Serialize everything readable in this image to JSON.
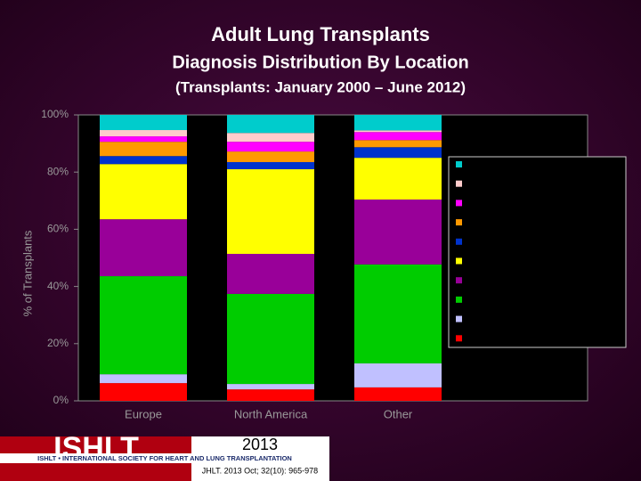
{
  "chart_data": {
    "type": "stacked-bar",
    "title": "Adult Lung Transplants",
    "subtitle": "Diagnosis Distribution By Location",
    "subtitle2": "(Transplants: January 2000 – June 2012)",
    "y_label": "% of Transplants",
    "categories": [
      "Europe",
      "North America",
      "Other"
    ],
    "series": [
      {
        "color": "#ff0000",
        "values": [
          6.2,
          4.0,
          4.7
        ]
      },
      {
        "color": "#c0c0ff",
        "values": [
          3.1,
          1.9,
          8.4
        ]
      },
      {
        "color": "#00cc00",
        "values": [
          34.3,
          31.5,
          34.6
        ]
      },
      {
        "color": "#990099",
        "values": [
          19.9,
          14.0,
          22.7
        ]
      },
      {
        "color": "#ffff00",
        "values": [
          19.3,
          29.6,
          14.6
        ]
      },
      {
        "color": "#0033cc",
        "values": [
          2.8,
          2.5,
          3.7
        ]
      },
      {
        "color": "#ff9900",
        "values": [
          5.0,
          3.7,
          2.5
        ]
      },
      {
        "color": "#ff00ff",
        "values": [
          1.9,
          3.4,
          2.8
        ]
      },
      {
        "color": "#ffcccc",
        "values": [
          2.2,
          3.1,
          0.6
        ]
      },
      {
        "color": "#00cccc",
        "values": [
          5.3,
          6.3,
          5.4
        ]
      }
    ],
    "ylim": [
      0,
      100
    ],
    "yticks": [
      {
        "value": 0,
        "label": "0%"
      },
      {
        "value": 20,
        "label": "20%"
      },
      {
        "value": 40,
        "label": "40%"
      },
      {
        "value": 60,
        "label": "60%"
      },
      {
        "value": 80,
        "label": "80%"
      },
      {
        "value": 100,
        "label": "100%"
      }
    ],
    "legend": "right"
  },
  "footer": {
    "logo": "ISHLT",
    "society": "ISHLT • INTERNATIONAL SOCIETY FOR HEART AND LUNG TRANSPLANTATION",
    "year": "2013",
    "citation": "JHLT. 2013 Oct; 32(10): 965-978"
  }
}
